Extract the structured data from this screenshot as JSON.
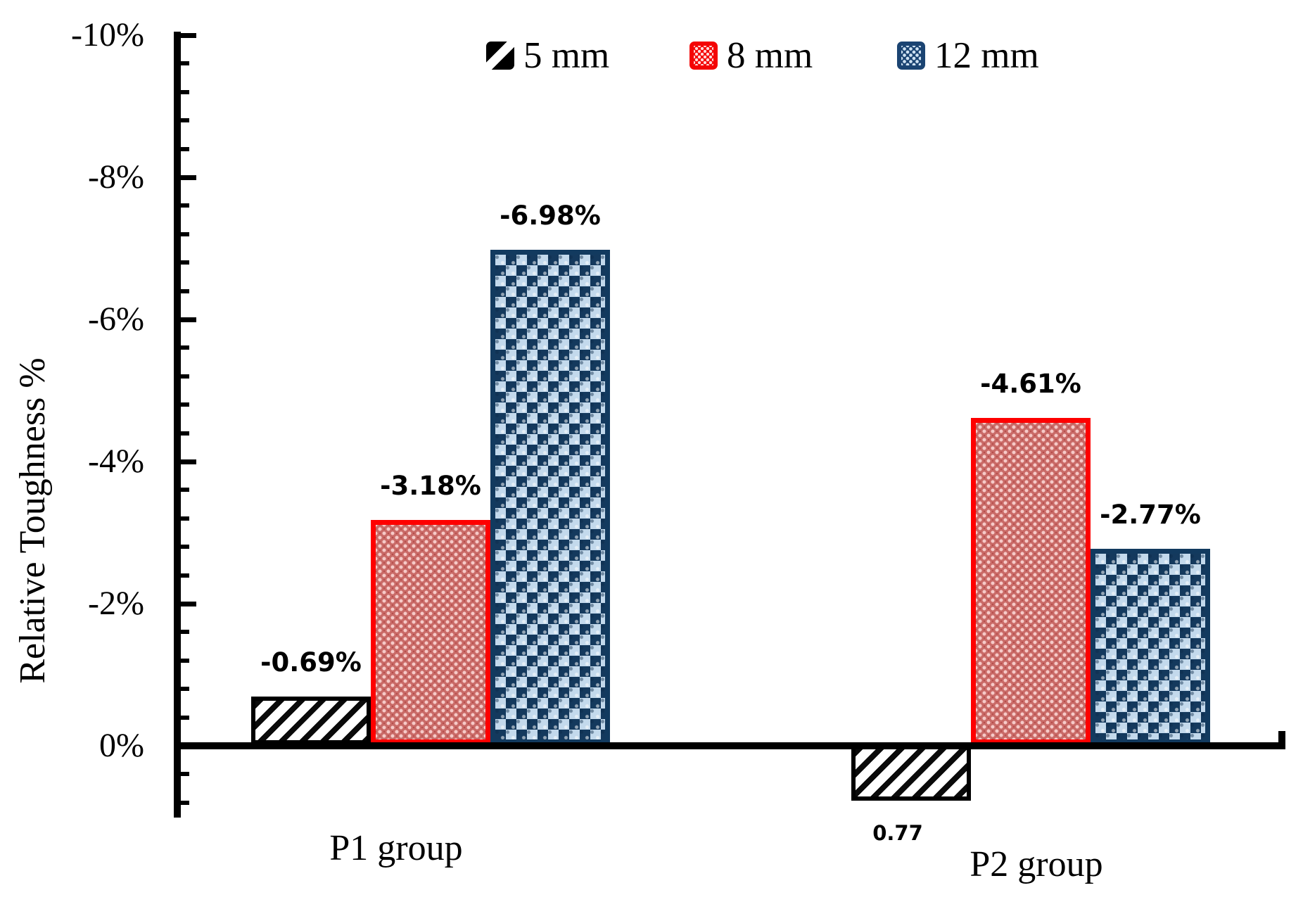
{
  "chart_data": {
    "type": "bar",
    "title": "",
    "xlabel": "",
    "ylabel": "Relative Toughness %",
    "categories": [
      "P1 group",
      "P2 group"
    ],
    "series": [
      {
        "name": "5 mm",
        "values": [
          -0.69,
          0.77
        ],
        "data_labels": [
          "-0.69%",
          "0.77"
        ],
        "style": "black-diagonal-hatch",
        "border_color": "#000000"
      },
      {
        "name": "8 mm",
        "values": [
          -3.18,
          -4.61
        ],
        "data_labels": [
          "-3.18%",
          "-4.61%"
        ],
        "style": "red-dot-pattern",
        "border_color": "#ff0000"
      },
      {
        "name": "12 mm",
        "values": [
          -6.98,
          -2.77
        ],
        "data_labels": [
          "-6.98%",
          "-2.77%"
        ],
        "style": "blue-checker-pattern",
        "border_color": "#123a5f"
      }
    ],
    "y_axis": {
      "tick_labels": [
        "-10%",
        "-8%",
        "-6%",
        "-4%",
        "-2%",
        "0%"
      ],
      "tick_values": [
        -10,
        -8,
        -6,
        -4,
        -2,
        0
      ],
      "minor_tick_step": 0.4,
      "axis_top_value": -10,
      "axis_bottom_value": 1,
      "direction": "negative-up",
      "grid": false
    },
    "legend": {
      "position": "top-center",
      "entries": [
        "5 mm",
        "8 mm",
        "12 mm"
      ]
    },
    "colors": {
      "background": "#ffffff",
      "axis": "#000000",
      "hatch_fill": "#ffffff",
      "hatch_stripe": "#0a0a0a",
      "red_border": "#fe0000",
      "red_fill_base": "#c96a67",
      "red_fill_dot": "#f6cac8",
      "blue_border": "#123a5f",
      "blue_fill_light": "#c3d9ec",
      "blue_fill_dark": "#14395d"
    }
  }
}
